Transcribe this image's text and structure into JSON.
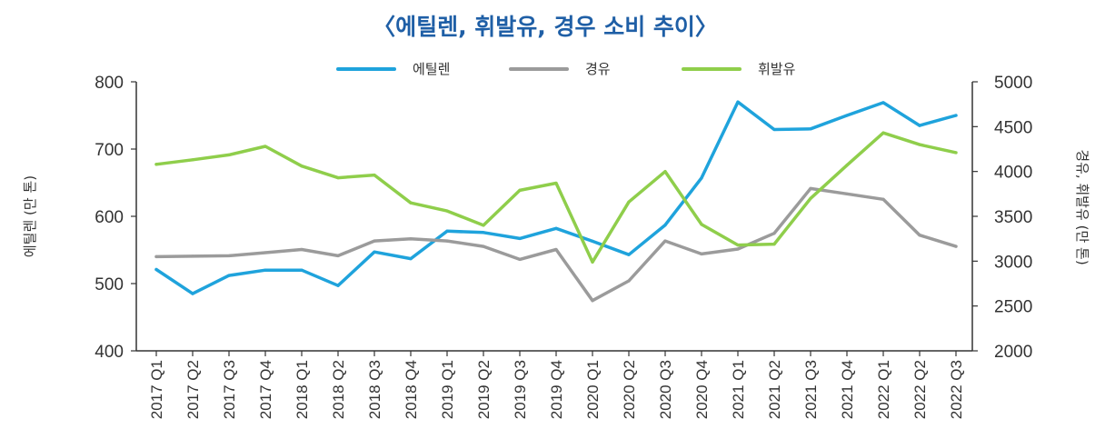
{
  "chart_data": {
    "type": "line",
    "title": "〈에틸렌, 휘발유, 경우 소비 추이〉",
    "categories": [
      "2017 Q1",
      "2017 Q2",
      "2017 Q3",
      "2017 Q4",
      "2018 Q1",
      "2018 Q2",
      "2018 Q3",
      "2018 Q4",
      "2019 Q1",
      "2019 Q2",
      "2019 Q3",
      "2019 Q4",
      "2020 Q1",
      "2020 Q2",
      "2020 Q3",
      "2020 Q4",
      "2021 Q1",
      "2021 Q2",
      "2021 Q3",
      "2021 Q4",
      "2022 Q1",
      "2022 Q2",
      "2022 Q3"
    ],
    "ylabel_left": "에틸렌 (만 톤)",
    "ylabel_right": "경유, 휘발유 (만 톤)",
    "ylim_left": [
      400,
      800
    ],
    "yticks_left": [
      "400",
      "500",
      "600",
      "700",
      "800"
    ],
    "ylim_right": [
      2000,
      5000
    ],
    "yticks_right": [
      "2000",
      "2500",
      "3000",
      "3500",
      "4000",
      "4500",
      "5000"
    ],
    "legend_position": "top-center",
    "series": [
      {
        "name": "에틸렌",
        "axis": "left",
        "color": "#1fa3dc",
        "values": [
          521,
          485,
          512,
          520,
          520,
          497,
          547,
          537,
          578,
          576,
          567,
          582,
          563,
          543,
          587,
          657,
          770,
          729,
          730,
          750,
          769,
          735,
          750
        ]
      },
      {
        "name": "경유",
        "axis": "right",
        "color": "#9b9b9b",
        "values": [
          3050,
          3055,
          3060,
          3095,
          3130,
          3060,
          3225,
          3250,
          3225,
          3165,
          3020,
          3130,
          2560,
          2780,
          3225,
          3080,
          3135,
          3310,
          3810,
          3750,
          3690,
          3290,
          3165
        ]
      },
      {
        "name": "휘발유",
        "axis": "right",
        "color": "#8fce4b",
        "values": [
          4080,
          4130,
          4185,
          4280,
          4060,
          3930,
          3960,
          3650,
          3560,
          3400,
          3790,
          3870,
          2990,
          3660,
          4000,
          3410,
          3180,
          3190,
          3700,
          4070,
          4430,
          4300,
          4210
        ]
      }
    ]
  }
}
